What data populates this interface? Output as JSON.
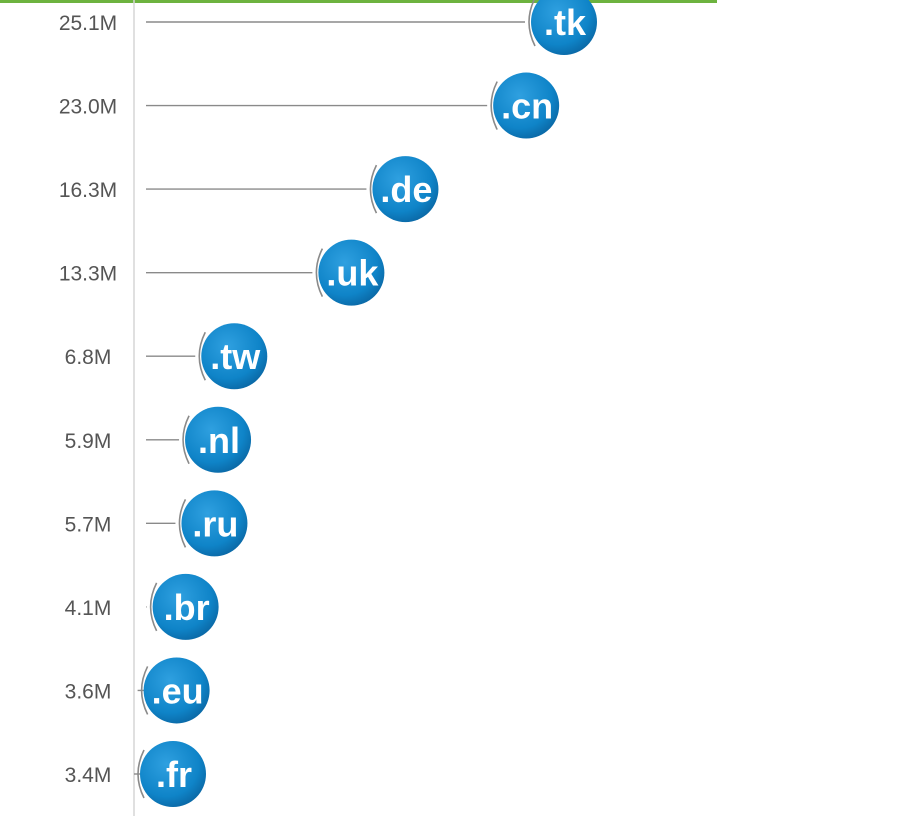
{
  "chart_data": {
    "type": "scatter",
    "title": "",
    "xlabel": "",
    "ylabel": "",
    "categories": [
      ".tk",
      ".cn",
      ".de",
      ".uk",
      ".tw",
      ".nl",
      ".ru",
      ".br",
      ".eu",
      ".fr"
    ],
    "value_labels": [
      "25.1M",
      "23.0M",
      "16.3M",
      "13.3M",
      "6.8M",
      "5.9M",
      "5.7M",
      "4.1M",
      "3.6M",
      "3.4M"
    ],
    "values": [
      25.1,
      23.0,
      16.3,
      13.3,
      6.8,
      5.9,
      5.7,
      4.1,
      3.6,
      3.4
    ],
    "grid": false,
    "legend": "none",
    "colors": {
      "bubble": "#0f84c8",
      "bubble_dark": "#0a66a3",
      "line": "#8a8a8a",
      "axis": "#d6d6d6",
      "accent_bar": "#6db33f",
      "tick_text": "#555555",
      "bubble_text": "#ffffff"
    }
  }
}
